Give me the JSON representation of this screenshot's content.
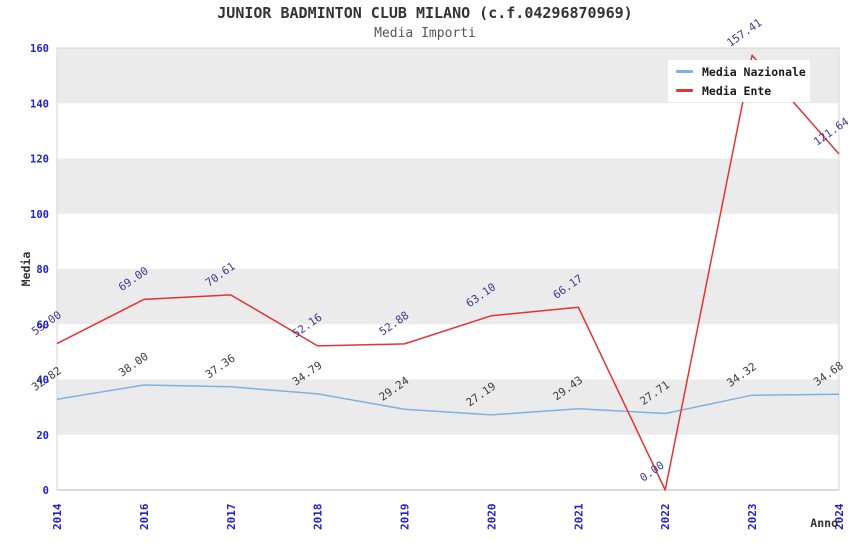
{
  "title": "JUNIOR BADMINTON CLUB MILANO (c.f.04296870969)",
  "subtitle": "Media Importi",
  "chart_data": {
    "type": "line",
    "x": [
      "2014",
      "2016",
      "2017",
      "2018",
      "2019",
      "2020",
      "2021",
      "2022",
      "2023",
      "2024"
    ],
    "series": [
      {
        "name": "Media Nazionale",
        "color": "#7fb2e2",
        "label_color": "#3d3d3d",
        "values": [
          32.82,
          38.0,
          37.36,
          34.79,
          29.24,
          27.19,
          29.43,
          27.71,
          34.32,
          34.68
        ]
      },
      {
        "name": "Media Ente",
        "color": "#e63232",
        "label_color": "#3a3a99",
        "values": [
          53.0,
          69.0,
          70.61,
          52.16,
          52.88,
          63.1,
          66.17,
          0.0,
          157.41,
          121.64
        ]
      }
    ],
    "xlabel": "Anno",
    "ylabel": "Media",
    "ylim": [
      0,
      160
    ],
    "yticks": [
      0,
      20,
      40,
      60,
      80,
      100,
      120,
      140,
      160
    ],
    "grid": "horizontal-bands",
    "band_fill": "#ebebeb",
    "plot_border_color": "#d4d4d4",
    "tick_color": "#2020cc",
    "legend_position": "top-right",
    "point_labels_decimals": 2
  }
}
